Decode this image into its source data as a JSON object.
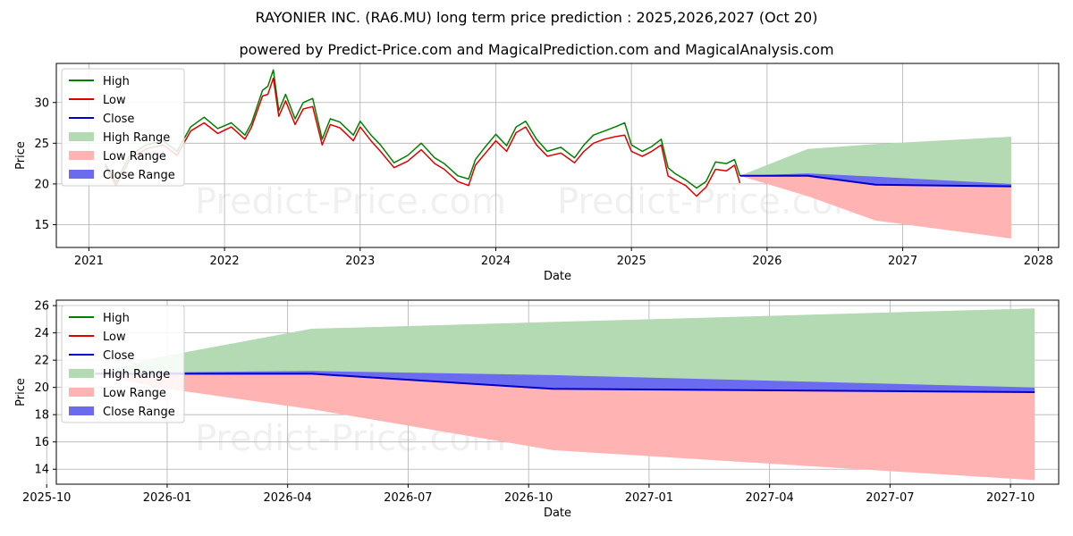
{
  "title": "RAYONIER INC. (RA6.MU) long term price prediction : 2025,2026,2027 (Oct 20)",
  "subtitle": "powered by Predict-Price.com and MagicalPrediction.com and MagicalAnalysis.com",
  "watermark": "Predict-Price.com",
  "colors": {
    "high": "#008000",
    "low": "#e00000",
    "close": "#0000cc",
    "high_range": "#b3dab3",
    "low_range": "#ffb3b3",
    "close_range": "#6b6bf0"
  },
  "chart_data": [
    {
      "type": "line",
      "name": "history-and-forecast",
      "xlabel": "Date",
      "ylabel": "Price",
      "xlim": [
        2020.76,
        2028.15
      ],
      "ylim": [
        12.2,
        34.8
      ],
      "x_ticks": [
        2021,
        2022,
        2023,
        2024,
        2025,
        2026,
        2027,
        2028
      ],
      "x_tick_labels": [
        "2021",
        "2022",
        "2023",
        "2024",
        "2025",
        "2026",
        "2027",
        "2028"
      ],
      "y_ticks": [
        15,
        20,
        25,
        30
      ],
      "y_tick_labels": [
        "15",
        "20",
        "25",
        "30"
      ],
      "grid": true,
      "legend": {
        "position": "top-left",
        "entries": [
          "High",
          "Low",
          "Close",
          "High Range",
          "Low Range",
          "Close Range"
        ]
      },
      "history": {
        "x": [
          2021.12,
          2021.2,
          2021.3,
          2021.42,
          2021.55,
          2021.65,
          2021.75,
          2021.85,
          2021.95,
          2022.05,
          2022.15,
          2022.2,
          2022.28,
          2022.32,
          2022.36,
          2022.4,
          2022.45,
          2022.52,
          2022.58,
          2022.65,
          2022.72,
          2022.78,
          2022.85,
          2022.95,
          2023.0,
          2023.08,
          2023.15,
          2023.25,
          2023.35,
          2023.45,
          2023.55,
          2023.62,
          2023.72,
          2023.8,
          2023.85,
          2023.92,
          2024.0,
          2024.08,
          2024.15,
          2024.22,
          2024.3,
          2024.38,
          2024.48,
          2024.58,
          2024.65,
          2024.72,
          2024.8,
          2024.88,
          2024.95,
          2025.0,
          2025.08,
          2025.15,
          2025.22,
          2025.27,
          2025.32,
          2025.4,
          2025.48,
          2025.55,
          2025.62,
          2025.7,
          2025.76,
          2025.8
        ],
        "high": [
          22.5,
          20.2,
          23.5,
          24.8,
          25.3,
          24.0,
          27.0,
          28.2,
          26.8,
          27.5,
          26.0,
          27.5,
          31.5,
          32.0,
          34.0,
          29.0,
          31.0,
          28.0,
          30.0,
          30.5,
          25.5,
          28.0,
          27.6,
          26.0,
          27.7,
          26.0,
          24.8,
          22.6,
          23.5,
          25.0,
          23.2,
          22.5,
          21.0,
          20.6,
          23.0,
          24.5,
          26.1,
          24.7,
          27.0,
          27.7,
          25.5,
          24.0,
          24.5,
          23.2,
          24.8,
          26.0,
          26.5,
          27.0,
          27.5,
          24.8,
          24.0,
          24.6,
          25.5,
          22.0,
          21.3,
          20.5,
          19.5,
          20.3,
          22.7,
          22.5,
          23.0,
          21.0
        ],
        "low": [
          22.2,
          19.8,
          23.0,
          24.3,
          24.8,
          23.5,
          26.5,
          27.5,
          26.2,
          27.0,
          25.5,
          27.0,
          30.8,
          31.0,
          33.0,
          28.3,
          30.2,
          27.3,
          29.2,
          29.5,
          24.8,
          27.3,
          26.9,
          25.3,
          27.0,
          25.3,
          24.0,
          22.0,
          22.8,
          24.2,
          22.5,
          21.8,
          20.3,
          19.8,
          22.3,
          23.7,
          25.3,
          24.0,
          26.3,
          27.0,
          24.8,
          23.4,
          23.8,
          22.6,
          24.0,
          25.0,
          25.5,
          25.8,
          26.0,
          24.0,
          23.4,
          24.0,
          24.8,
          21.0,
          20.5,
          19.8,
          18.5,
          19.6,
          21.8,
          21.6,
          22.3,
          20.1
        ]
      },
      "forecast": {
        "x": [
          2025.8,
          2026.3,
          2026.8,
          2027.8
        ],
        "close": [
          21.0,
          21.0,
          19.9,
          19.7
        ],
        "high_range": {
          "upper": [
            21.0,
            24.3,
            24.9,
            25.8
          ],
          "lower": [
            21.0,
            21.0,
            19.9,
            19.7
          ]
        },
        "low_range": {
          "upper": [
            21.0,
            21.0,
            19.9,
            19.7
          ],
          "lower": [
            21.0,
            18.5,
            15.5,
            13.3
          ]
        },
        "close_range": {
          "upper": [
            21.0,
            21.3,
            20.9,
            20.0
          ],
          "lower": [
            21.0,
            21.0,
            19.9,
            19.7
          ]
        }
      }
    },
    {
      "type": "line",
      "name": "forecast-zoom",
      "xlabel": "Date",
      "ylabel": "Price",
      "xlim": [
        2025.77,
        2027.85
      ],
      "ylim": [
        12.9,
        26.4
      ],
      "x_ticks": [
        2025.75,
        2026.0,
        2026.25,
        2026.5,
        2026.75,
        2027.0,
        2027.25,
        2027.5,
        2027.75
      ],
      "x_tick_labels": [
        "2025-10",
        "2026-01",
        "2026-04",
        "2026-07",
        "2026-10",
        "2027-01",
        "2027-04",
        "2027-07",
        "2027-10"
      ],
      "y_ticks": [
        14,
        16,
        18,
        20,
        22,
        24,
        26
      ],
      "y_tick_labels": [
        "14",
        "16",
        "18",
        "20",
        "22",
        "24",
        "26"
      ],
      "grid": true,
      "legend": {
        "position": "top-left",
        "entries": [
          "High",
          "Low",
          "Close",
          "High Range",
          "Low Range",
          "Close Range"
        ]
      },
      "forecast": {
        "x": [
          2025.85,
          2025.98,
          2026.3,
          2026.8,
          2027.8
        ],
        "close": [
          21.0,
          21.0,
          21.0,
          19.9,
          19.65
        ],
        "high_range": {
          "upper": [
            21.0,
            22.2,
            24.3,
            24.8,
            25.8
          ],
          "lower": [
            21.0,
            21.0,
            21.0,
            19.9,
            19.65
          ]
        },
        "low_range": {
          "upper": [
            21.0,
            21.0,
            21.0,
            19.9,
            19.65
          ],
          "lower": [
            21.0,
            20.0,
            18.4,
            15.4,
            13.2
          ]
        },
        "close_range": {
          "upper": [
            21.0,
            21.1,
            21.2,
            20.9,
            20.0
          ],
          "lower": [
            21.0,
            21.0,
            21.0,
            19.9,
            19.65
          ]
        }
      }
    }
  ]
}
